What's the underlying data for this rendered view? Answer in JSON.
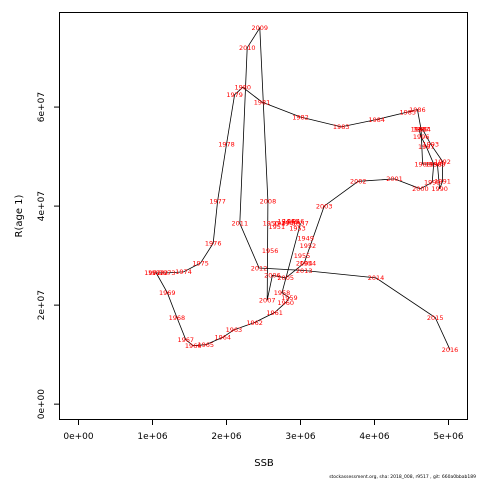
{
  "chart_data": {
    "type": "line",
    "title": "",
    "xlabel": "SSB",
    "ylabel": "R(age 1)",
    "xlim": [
      -250000,
      5250000
    ],
    "ylim": [
      -3000000,
      79000000
    ],
    "x_ticks": [
      0,
      1000000,
      2000000,
      3000000,
      4000000,
      5000000
    ],
    "x_tick_labels": [
      "0e+00",
      "1e+06",
      "2e+06",
      "3e+06",
      "4e+06",
      "5e+06"
    ],
    "y_ticks": [
      0,
      20000000,
      40000000,
      60000000
    ],
    "y_tick_labels": [
      "0e+00",
      "2e+07",
      "4e+07",
      "6e+07"
    ],
    "grid": false,
    "legend": "none",
    "line_color": "#000000",
    "label_color": "#ff0000",
    "series": [
      {
        "points": [
          {
            "year": "1957",
            "x": 3000000,
            "y": 36500000
          },
          {
            "year": "1958",
            "x": 2750000,
            "y": 22500000
          },
          {
            "year": "1959",
            "x": 2850000,
            "y": 21500000
          },
          {
            "year": "1960",
            "x": 2800000,
            "y": 20500000
          },
          {
            "year": "1961",
            "x": 2650000,
            "y": 18500000
          },
          {
            "year": "1962",
            "x": 2380000,
            "y": 16500000
          },
          {
            "year": "1963",
            "x": 2100000,
            "y": 15000000
          },
          {
            "year": "1964",
            "x": 1950000,
            "y": 13500000
          },
          {
            "year": "1965",
            "x": 1720000,
            "y": 12000000
          },
          {
            "year": "1966",
            "x": 1550000,
            "y": 11800000
          },
          {
            "year": "1967",
            "x": 1450000,
            "y": 13000000
          },
          {
            "year": "1968",
            "x": 1330000,
            "y": 17500000
          },
          {
            "year": "1969",
            "x": 1200000,
            "y": 22500000
          },
          {
            "year": "1970",
            "x": 1050000,
            "y": 26500000
          },
          {
            "year": "1971",
            "x": 1000000,
            "y": 26500000
          },
          {
            "year": "1972",
            "x": 1100000,
            "y": 26500000
          },
          {
            "year": "1973",
            "x": 1200000,
            "y": 26500000
          },
          {
            "year": "1974",
            "x": 1420000,
            "y": 26700000
          },
          {
            "year": "1975",
            "x": 1650000,
            "y": 28500000
          },
          {
            "year": "1976",
            "x": 1820000,
            "y": 32500000
          },
          {
            "year": "1977",
            "x": 1880000,
            "y": 41000000
          },
          {
            "year": "1978",
            "x": 2000000,
            "y": 52500000
          },
          {
            "year": "1979",
            "x": 2110000,
            "y": 62500000
          },
          {
            "year": "1980",
            "x": 2220000,
            "y": 64000000
          },
          {
            "year": "1981",
            "x": 2480000,
            "y": 61000000
          },
          {
            "year": "1982",
            "x": 3000000,
            "y": 58000000
          },
          {
            "year": "1983",
            "x": 3550000,
            "y": 56000000
          },
          {
            "year": "1984",
            "x": 4030000,
            "y": 57500000
          },
          {
            "year": "1985",
            "x": 4450000,
            "y": 59000000
          },
          {
            "year": "1986",
            "x": 4580000,
            "y": 59500000
          },
          {
            "year": "1987",
            "x": 4630000,
            "y": 55500000
          },
          {
            "year": "1988",
            "x": 4650000,
            "y": 48500000
          },
          {
            "year": "1989",
            "x": 4850000,
            "y": 48500000
          },
          {
            "year": "1990",
            "x": 4880000,
            "y": 43500000
          },
          {
            "year": "1991",
            "x": 4920000,
            "y": 45000000
          },
          {
            "year": "1992",
            "x": 4920000,
            "y": 49000000
          },
          {
            "year": "1993",
            "x": 4760000,
            "y": 52500000
          },
          {
            "year": "1994",
            "x": 4650000,
            "y": 55500000
          },
          {
            "year": "1995",
            "x": 4600000,
            "y": 55500000
          },
          {
            "year": "1996",
            "x": 4630000,
            "y": 54000000
          },
          {
            "year": "1997",
            "x": 4700000,
            "y": 52000000
          },
          {
            "year": "1998",
            "x": 4800000,
            "y": 48500000
          },
          {
            "year": "1999",
            "x": 4780000,
            "y": 44800000
          },
          {
            "year": "2000",
            "x": 4620000,
            "y": 43500000
          },
          {
            "year": "2001",
            "x": 4270000,
            "y": 45500000
          },
          {
            "year": "2002",
            "x": 3780000,
            "y": 45000000
          },
          {
            "year": "2003",
            "x": 3320000,
            "y": 40000000
          },
          {
            "year": "2004",
            "x": 3050000,
            "y": 28500000
          },
          {
            "year": "2005",
            "x": 2800000,
            "y": 25500000
          },
          {
            "year": "2006",
            "x": 2620000,
            "y": 26000000
          },
          {
            "year": "2007",
            "x": 2550000,
            "y": 21000000
          },
          {
            "year": "2008",
            "x": 2560000,
            "y": 41000000
          },
          {
            "year": "2009",
            "x": 2450000,
            "y": 76000000
          },
          {
            "year": "2010",
            "x": 2280000,
            "y": 72000000
          },
          {
            "year": "2011",
            "x": 2180000,
            "y": 36500000
          },
          {
            "year": "2012",
            "x": 2440000,
            "y": 27500000
          },
          {
            "year": "2013",
            "x": 3050000,
            "y": 27000000
          },
          {
            "year": "2014",
            "x": 4020000,
            "y": 25500000
          },
          {
            "year": "2015",
            "x": 4820000,
            "y": 17500000
          },
          {
            "year": "2016",
            "x": 5020000,
            "y": 11000000
          }
        ]
      }
    ],
    "extra_labels": [
      {
        "text": "1944",
        "x": 2800000,
        "y": 37000000
      },
      {
        "text": "1945",
        "x": 2870000,
        "y": 37000000
      },
      {
        "text": "1946",
        "x": 2940000,
        "y": 37000000
      },
      {
        "text": "1947",
        "x": 2740000,
        "y": 36500000
      },
      {
        "text": "1948",
        "x": 2850000,
        "y": 36500000
      },
      {
        "text": "1949",
        "x": 3070000,
        "y": 33500000
      },
      {
        "text": "1950",
        "x": 2600000,
        "y": 36500000
      },
      {
        "text": "1951",
        "x": 2680000,
        "y": 35800000
      },
      {
        "text": "1952",
        "x": 3100000,
        "y": 32000000
      },
      {
        "text": "1953",
        "x": 2960000,
        "y": 35500000
      },
      {
        "text": "1954",
        "x": 3100000,
        "y": 28500000
      },
      {
        "text": "1955",
        "x": 3020000,
        "y": 30000000
      },
      {
        "text": "1956",
        "x": 2590000,
        "y": 31000000
      }
    ],
    "footer": "stockassessment.org,  sha: 2018_008,  r9517 ,  git: 660a0bbab189"
  }
}
